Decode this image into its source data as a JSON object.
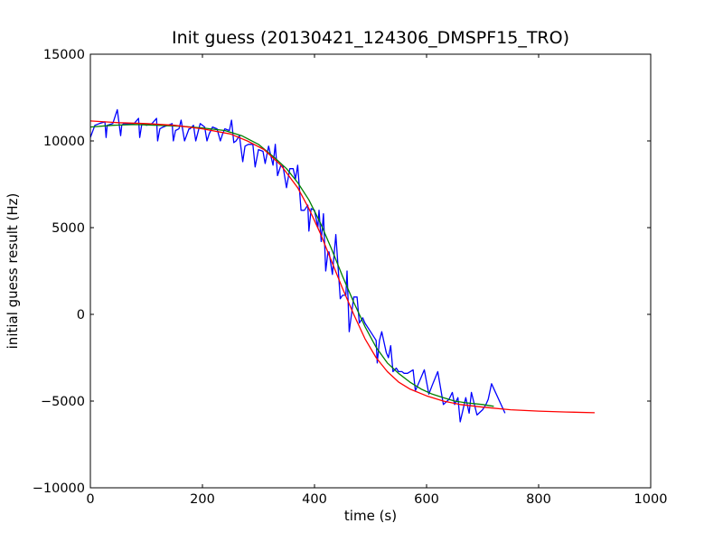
{
  "chart_data": {
    "type": "line",
    "title": "Init guess (20130421_124306_DMSPF15_TRO)",
    "xlabel": "time (s)",
    "ylabel": "initial guess result (Hz)",
    "xlim": [
      0,
      1000
    ],
    "ylim": [
      -10000,
      15000
    ],
    "x_ticks": [
      "0",
      "200",
      "400",
      "600",
      "800",
      "1000"
    ],
    "y_ticks": [
      "15000",
      "10000",
      "5000",
      "0",
      "−5000",
      "−10000"
    ],
    "x_tick_values": [
      0,
      200,
      400,
      600,
      800,
      1000
    ],
    "y_tick_values": [
      15000,
      10000,
      5000,
      0,
      -5000,
      -10000
    ],
    "grid": false,
    "legend": "none",
    "series": [
      {
        "color": "#0000ff",
        "x": [
          0,
          8,
          16,
          26,
          28,
          30,
          40,
          48,
          54,
          56,
          60,
          70,
          78,
          86,
          88,
          92,
          100,
          110,
          118,
          120,
          124,
          130,
          138,
          146,
          148,
          152,
          158,
          162,
          168,
          176,
          178,
          184,
          188,
          196,
          204,
          208,
          212,
          218,
          226,
          232,
          236,
          240,
          248,
          252,
          256,
          260,
          266,
          272,
          276,
          282,
          290,
          294,
          300,
          308,
          312,
          318,
          326,
          330,
          334,
          340,
          344,
          350,
          356,
          362,
          366,
          370,
          376,
          382,
          388,
          390,
          394,
          400,
          406,
          408,
          412,
          416,
          420,
          424,
          426,
          432,
          438,
          446,
          450,
          456,
          458,
          462,
          470,
          476,
          480,
          486,
          490,
          500,
          510,
          512,
          516,
          520,
          528,
          532,
          536,
          540,
          546,
          550,
          556,
          560,
          566,
          576,
          580,
          588,
          596,
          604,
          610,
          620,
          630,
          640,
          646,
          650,
          656,
          660,
          670,
          676,
          680,
          690,
          700,
          706,
          710,
          716,
          740
        ],
        "y": [
          10200,
          10900,
          11000,
          11100,
          10200,
          10900,
          11000,
          11800,
          10300,
          10900,
          11000,
          11000,
          11000,
          11300,
          10200,
          11000,
          10900,
          11000,
          11300,
          10000,
          10700,
          10800,
          10900,
          11000,
          10000,
          10600,
          10700,
          11200,
          10000,
          10700,
          10700,
          10900,
          10000,
          11000,
          10800,
          10000,
          10400,
          10800,
          10700,
          10000,
          10400,
          10700,
          10600,
          11200,
          9900,
          10000,
          10300,
          8800,
          9700,
          9800,
          9800,
          8500,
          9500,
          9400,
          8700,
          9700,
          8600,
          9800,
          8000,
          8600,
          8500,
          7300,
          8400,
          8400,
          7800,
          8600,
          6000,
          6000,
          6300,
          4800,
          6100,
          6000,
          5000,
          6000,
          4200,
          5800,
          2500,
          3600,
          3600,
          2300,
          4600,
          900,
          1100,
          1100,
          2500,
          -1000,
          1000,
          1000,
          -500,
          -200,
          -500,
          -1000,
          -1500,
          -2800,
          -1500,
          -1000,
          -2200,
          -2500,
          -1800,
          -3300,
          -3100,
          -3300,
          -3300,
          -3400,
          -3400,
          -3200,
          -4400,
          -3800,
          -3200,
          -4600,
          -4100,
          -3300,
          -5200,
          -4900,
          -4500,
          -5200,
          -4800,
          -6200,
          -4800,
          -5700,
          -4500,
          -5800,
          -5500,
          -5200,
          -4900,
          -4000,
          -5700
        ]
      },
      {
        "color": "#008000",
        "x": [
          0,
          40,
          80,
          120,
          160,
          200,
          240,
          270,
          300,
          330,
          350,
          370,
          390,
          410,
          430,
          450,
          470,
          490,
          510,
          530,
          550,
          570,
          590,
          610,
          630,
          650,
          670,
          700,
          720
        ],
        "y": [
          10800,
          10900,
          10950,
          10900,
          10850,
          10750,
          10600,
          10300,
          9800,
          9000,
          8400,
          7600,
          6600,
          5300,
          3800,
          2200,
          700,
          -700,
          -1900,
          -2800,
          -3400,
          -3900,
          -4300,
          -4600,
          -4800,
          -5000,
          -5100,
          -5200,
          -5300
        ]
      },
      {
        "color": "#ff0000",
        "x": [
          0,
          50,
          100,
          150,
          200,
          250,
          280,
          310,
          340,
          370,
          390,
          410,
          430,
          450,
          470,
          490,
          510,
          530,
          550,
          570,
          600,
          630,
          660,
          700,
          750,
          800,
          850,
          900
        ],
        "y": [
          11150,
          11050,
          11000,
          10900,
          10700,
          10400,
          10000,
          9500,
          8600,
          7300,
          6100,
          4700,
          3100,
          1500,
          0,
          -1400,
          -2500,
          -3300,
          -3900,
          -4300,
          -4700,
          -5000,
          -5200,
          -5350,
          -5500,
          -5580,
          -5630,
          -5670
        ]
      }
    ]
  }
}
